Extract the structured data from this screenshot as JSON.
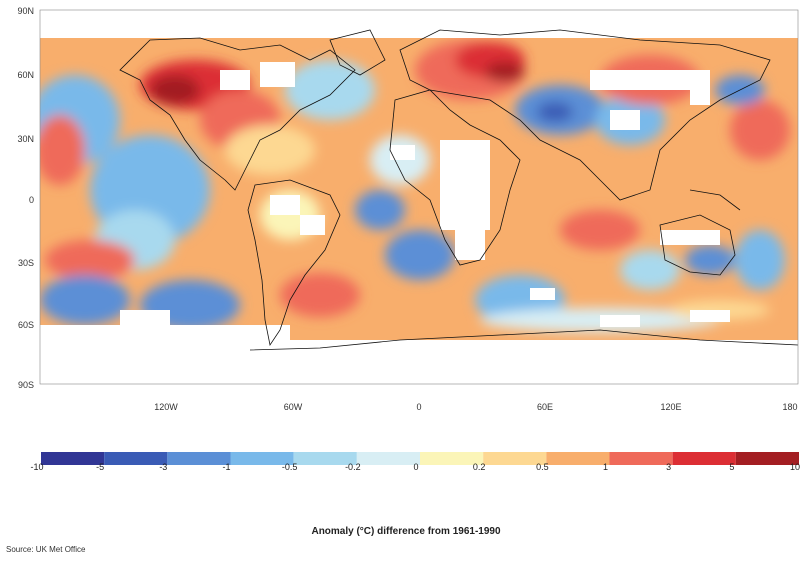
{
  "map": {
    "lat_ticks": [
      "90N",
      "60N",
      "30N",
      "0",
      "30S",
      "60S",
      "90S"
    ],
    "lon_ticks": [
      "120W",
      "60W",
      "0",
      "60E",
      "120E",
      "180"
    ]
  },
  "legend": {
    "boundaries": [
      "-10",
      "-5",
      "-3",
      "-1",
      "-0.5",
      "-0.2",
      "0",
      "0.2",
      "0.5",
      "1",
      "3",
      "5",
      "10"
    ],
    "colors": [
      "#313695",
      "#3a5bb5",
      "#5b8fd6",
      "#79b9ea",
      "#a8d9ee",
      "#d8eef4",
      "#fbf5b8",
      "#fdd892",
      "#f8ae6c",
      "#ef6a5a",
      "#dc2e34",
      "#a31e22"
    ]
  },
  "caption": "Anomaly (°C) difference from 1961-1990",
  "source": "Source: UK Met Office"
}
